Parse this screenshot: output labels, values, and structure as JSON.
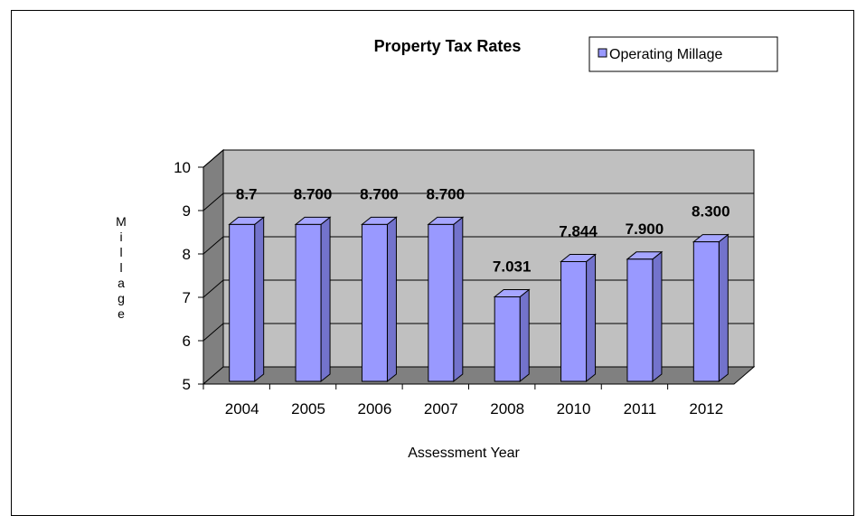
{
  "chart_data": {
    "type": "bar",
    "title": "Property Tax Rates",
    "xlabel": "Assessment Year",
    "ylabel": "Millage",
    "categories": [
      "2004",
      "2005",
      "2006",
      "2007",
      "2008",
      "2010",
      "2011",
      "2012"
    ],
    "series": [
      {
        "name": "Operating Millage",
        "values": [
          8.7,
          8.7,
          8.7,
          8.7,
          7.031,
          7.844,
          7.9,
          8.3
        ],
        "data_labels": [
          "8.7",
          "8.700",
          "8.700",
          "8.700",
          "7.031",
          "7.844",
          "7.900",
          "8.300"
        ],
        "color": "#9999ff"
      }
    ],
    "ylim": [
      5,
      10
    ],
    "yticks": [
      "5",
      "6",
      "7",
      "8",
      "9",
      "10"
    ],
    "grid": true,
    "legend": "top-right",
    "style": "3d-column"
  }
}
